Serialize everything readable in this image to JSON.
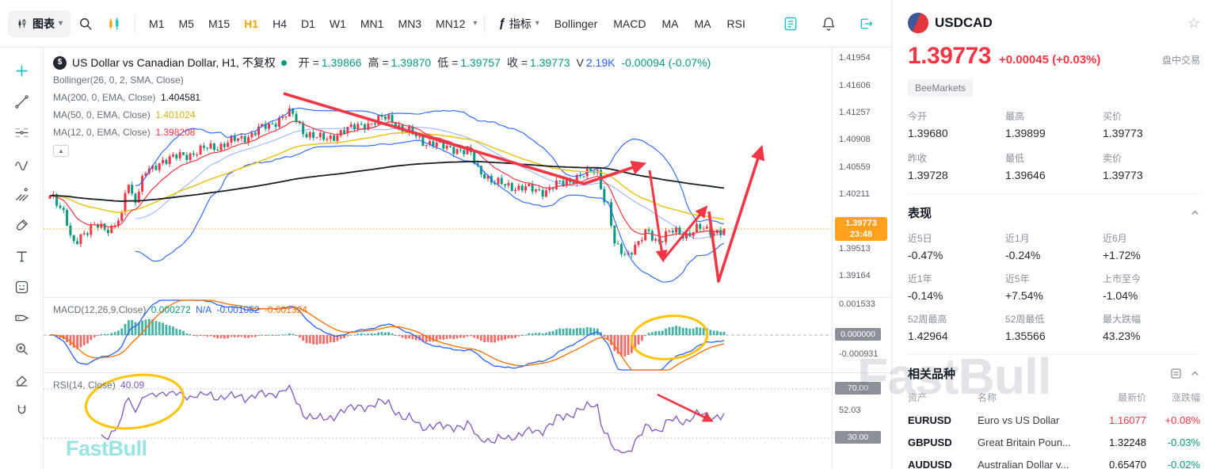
{
  "colors": {
    "accent_teal": "#1EC2C2",
    "up_red": "#F23645",
    "down_green": "#089981",
    "active_orange": "#F5A300",
    "badge_orange": "#FFA11B",
    "macd_blue": "#2962FF",
    "signal_orange": "#FF6D00",
    "rsi_purple": "#7E57C2",
    "ma50_yellow": "#D3B416"
  },
  "toolbar": {
    "chart_menu_label": "图表",
    "timeframes": [
      "M1",
      "M5",
      "M15",
      "H1",
      "H4",
      "D1",
      "W1",
      "MN1",
      "MN3",
      "MN12"
    ],
    "active_timeframe": "H1",
    "fx_glyph": "ƒ",
    "indicators_label": "指标",
    "indicator_shortcuts": [
      "Bollinger",
      "MACD",
      "MA",
      "MA",
      "RSI"
    ]
  },
  "chart": {
    "title": "US Dollar vs Canadian Dollar, H1, 不复权",
    "ohlc": {
      "open_label": "开 =",
      "open": "1.39866",
      "high_label": "高 =",
      "high": "1.39870",
      "low_label": "低 =",
      "low": "1.39757",
      "close_label": "收 =",
      "close": "1.39773",
      "volume_label": "V",
      "volume": "2.19K",
      "change": "-0.00094 (-0.07%)"
    },
    "indicator_legends": {
      "bollinger": "Bollinger(26, 0, 2, SMA, Close)",
      "ma200_label": "MA(200, 0, EMA, Close)",
      "ma200_value": "1.404581",
      "ma50_label": "MA(50, 0, EMA, Close)",
      "ma50_value": "1.401024",
      "ma12_label": "MA(12, 0, EMA, Close)",
      "ma12_value": "1.398208"
    },
    "price_badge": {
      "price": "1.39773",
      "countdown": "23:48"
    },
    "macd": {
      "legend": "MACD(12,26,9,Close)",
      "v1": "0.000272",
      "v2": "N/A",
      "v3": "-0.001052",
      "v4": "-0.001324",
      "axis_top": "0.001533",
      "axis_zero": "0.000000",
      "axis_bottom": "-0.000931"
    },
    "rsi": {
      "legend": "RSI(14, Close)",
      "value": "40.09",
      "level_top": "70.00",
      "level_mid": "52.03",
      "level_bottom": "30.00"
    },
    "watermark": "FastBull"
  },
  "chart_data": {
    "type": "candlestick",
    "symbol": "USDCAD",
    "timeframe": "H1",
    "last_price": 1.39773,
    "price_range": [
      1.389,
      1.421
    ],
    "price_axis_values": [
      1.41954,
      1.41606,
      1.41257,
      1.40908,
      1.40559,
      1.40211,
      1.39513,
      1.39164
    ],
    "macd_axis": [
      0.001533,
      -0.000931
    ],
    "rsi_levels": [
      70,
      52.03,
      30
    ],
    "candles": 198,
    "price_anchors": [
      [
        0,
        1.402
      ],
      [
        0.02,
        1.3998
      ],
      [
        0.035,
        1.3962
      ],
      [
        0.05,
        1.3968
      ],
      [
        0.07,
        1.3985
      ],
      [
        0.09,
        1.3975
      ],
      [
        0.105,
        1.399
      ],
      [
        0.115,
        1.404
      ],
      [
        0.125,
        1.4015
      ],
      [
        0.145,
        1.4052
      ],
      [
        0.17,
        1.4066
      ],
      [
        0.2,
        1.4072
      ],
      [
        0.24,
        1.4082
      ],
      [
        0.28,
        1.4092
      ],
      [
        0.32,
        1.4108
      ],
      [
        0.355,
        1.4126
      ],
      [
        0.38,
        1.41
      ],
      [
        0.41,
        1.4092
      ],
      [
        0.44,
        1.4105
      ],
      [
        0.47,
        1.4112
      ],
      [
        0.5,
        1.412
      ],
      [
        0.53,
        1.4102
      ],
      [
        0.56,
        1.4088
      ],
      [
        0.59,
        1.4082
      ],
      [
        0.62,
        1.4076
      ],
      [
        0.64,
        1.405
      ],
      [
        0.66,
        1.4036
      ],
      [
        0.7,
        1.403
      ],
      [
        0.73,
        1.4026
      ],
      [
        0.76,
        1.4036
      ],
      [
        0.79,
        1.4046
      ],
      [
        0.81,
        1.4052
      ],
      [
        0.826,
        1.401
      ],
      [
        0.84,
        1.3952
      ],
      [
        0.855,
        1.3944
      ],
      [
        0.87,
        1.3958
      ],
      [
        0.885,
        1.3972
      ],
      [
        0.9,
        1.3962
      ],
      [
        0.92,
        1.3975
      ],
      [
        0.94,
        1.3968
      ],
      [
        0.96,
        1.398
      ],
      [
        0.98,
        1.3972
      ],
      [
        1,
        1.39773
      ]
    ]
  },
  "panel": {
    "symbol": "USDCAD",
    "price": "1.39773",
    "change": "+0.00045 (+0.03%)",
    "status": "盘中交易",
    "broker": "BeeMarkets",
    "quote": [
      {
        "label": "今开",
        "value": "1.39680"
      },
      {
        "label": "最高",
        "value": "1.39899"
      },
      {
        "label": "买价",
        "value": "1.39773"
      },
      {
        "label": "昨收",
        "value": "1.39728"
      },
      {
        "label": "最低",
        "value": "1.39646"
      },
      {
        "label": "卖价",
        "value": "1.39773"
      }
    ],
    "performance": {
      "title": "表现",
      "items": [
        {
          "label": "近5日",
          "value": "-0.47%"
        },
        {
          "label": "近1月",
          "value": "-0.24%"
        },
        {
          "label": "近6月",
          "value": "+1.72%"
        },
        {
          "label": "近1年",
          "value": "-0.14%"
        },
        {
          "label": "近5年",
          "value": "+7.54%"
        },
        {
          "label": "上市至今",
          "value": "-1.04%"
        },
        {
          "label": "52周最高",
          "value": "1.42964"
        },
        {
          "label": "52周最低",
          "value": "1.35566"
        },
        {
          "label": "最大跌幅",
          "value": "43.23%"
        }
      ]
    },
    "related": {
      "title": "相关品种",
      "columns": [
        "资产",
        "名称",
        "最新价",
        "涨跌幅"
      ],
      "rows": [
        {
          "asset": "EURUSD",
          "name": "Euro vs US Dollar",
          "price": "1.16077",
          "change": "+0.08%"
        },
        {
          "asset": "GBPUSD",
          "name": "Great Britain Poun...",
          "price": "1.32248",
          "change": "-0.03%"
        },
        {
          "asset": "AUDUSD",
          "name": "Australian Dollar v...",
          "price": "0.65470",
          "change": "-0.02%"
        }
      ]
    }
  }
}
